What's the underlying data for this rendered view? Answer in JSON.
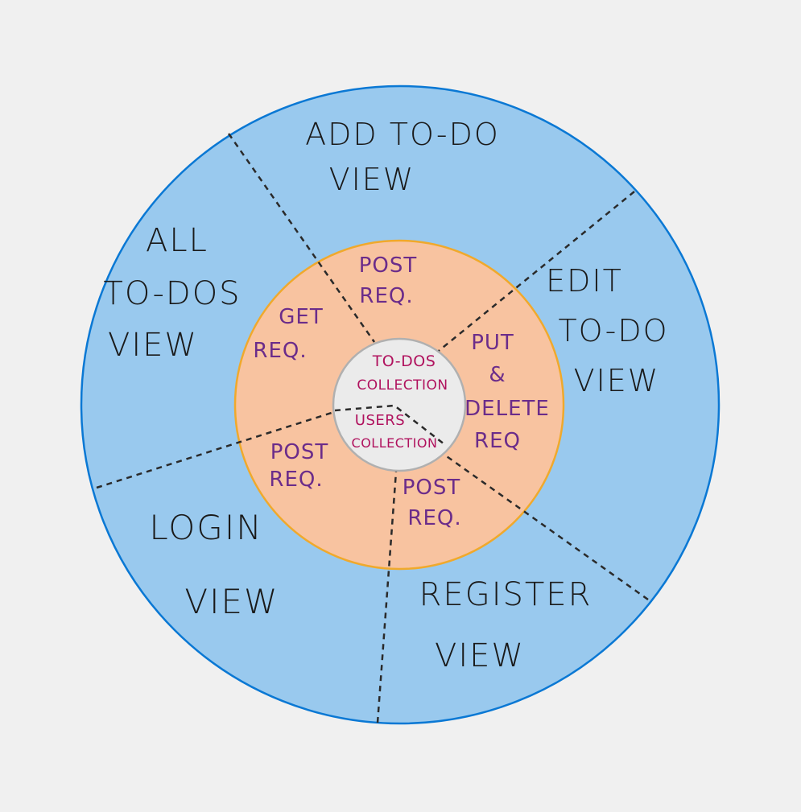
{
  "colors": {
    "background": "#f0f0f0",
    "outer_fill": "#99c9ee",
    "outer_stroke": "#0a78d4",
    "middle_fill": "#f8c3a0",
    "middle_stroke": "#f0a92c",
    "inner_fill": "#ebebeb",
    "inner_stroke": "#b0b0b0",
    "divider": "#2a2a2a",
    "view_text": "#1a1a1a",
    "request_text": "#6b2c8a",
    "collection_text": "#b0125e"
  },
  "views": [
    {
      "id": "add",
      "lines": [
        "ADD TO-DO",
        "VIEW"
      ]
    },
    {
      "id": "edit",
      "lines": [
        "EDIT",
        "TO-DO",
        "VIEW"
      ]
    },
    {
      "id": "register",
      "lines": [
        "REGISTER",
        "VIEW"
      ]
    },
    {
      "id": "login",
      "lines": [
        "LOGIN",
        "VIEW"
      ]
    },
    {
      "id": "all",
      "lines": [
        "ALL",
        "TO-DOS",
        "VIEW"
      ]
    }
  ],
  "requests": [
    {
      "id": "add_post",
      "lines": [
        "POST",
        "REQ."
      ]
    },
    {
      "id": "edit_put_delete",
      "lines": [
        "PUT",
        "&",
        "DELETE",
        "REQ"
      ]
    },
    {
      "id": "register_post",
      "lines": [
        "POST",
        "REQ."
      ]
    },
    {
      "id": "login_post",
      "lines": [
        "POST",
        "REQ."
      ]
    },
    {
      "id": "all_get",
      "lines": [
        "GET",
        "REQ."
      ]
    }
  ],
  "collections": {
    "todos": [
      "TO-DOS",
      "COLLECTION"
    ],
    "users": [
      "USERS",
      "COLLECTION"
    ]
  }
}
